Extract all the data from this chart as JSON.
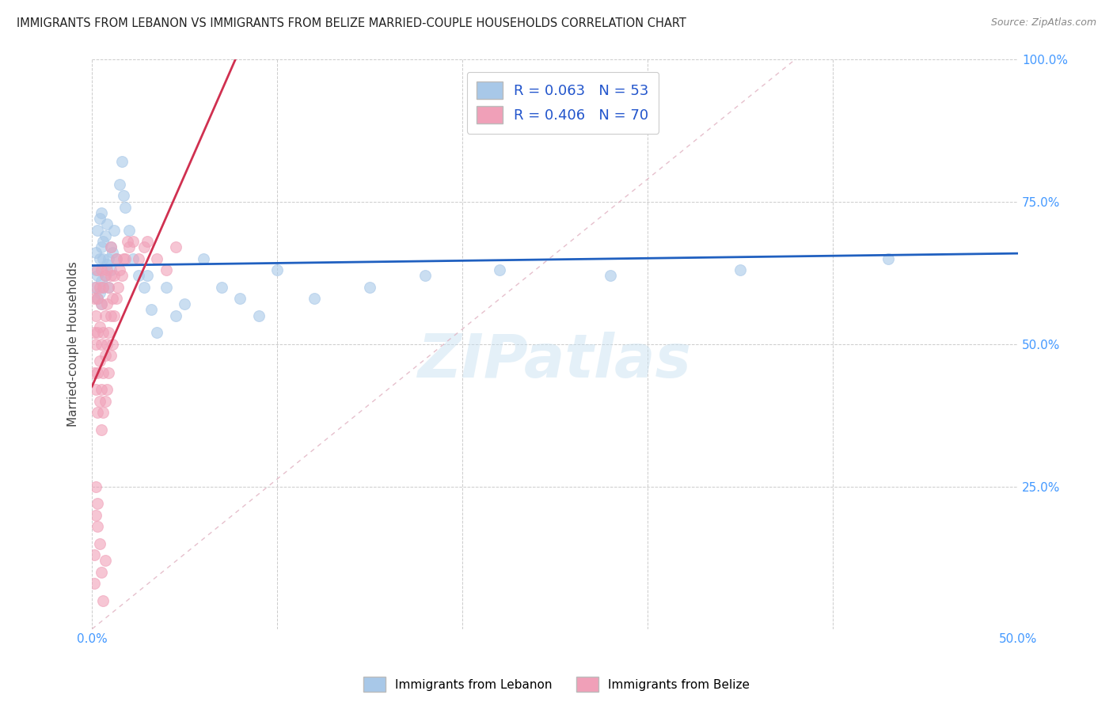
{
  "title": "IMMIGRANTS FROM LEBANON VS IMMIGRANTS FROM BELIZE MARRIED-COUPLE HOUSEHOLDS CORRELATION CHART",
  "source": "Source: ZipAtlas.com",
  "ylabel": "Married-couple Households",
  "legend_label1": "Immigrants from Lebanon",
  "legend_label2": "Immigrants from Belize",
  "r1": 0.063,
  "n1": 53,
  "r2": 0.406,
  "n2": 70,
  "color1": "#a8c8e8",
  "color2": "#f0a0b8",
  "line_color1": "#2060c0",
  "line_color2": "#d03050",
  "diag_color": "#e0b0c0",
  "xlim": [
    0.0,
    0.5
  ],
  "ylim": [
    0.0,
    1.0
  ],
  "watermark": "ZIPatlas",
  "lebanon_x": [
    0.001,
    0.002,
    0.002,
    0.003,
    0.003,
    0.003,
    0.004,
    0.004,
    0.004,
    0.005,
    0.005,
    0.005,
    0.005,
    0.006,
    0.006,
    0.006,
    0.007,
    0.007,
    0.008,
    0.008,
    0.009,
    0.009,
    0.01,
    0.01,
    0.011,
    0.012,
    0.013,
    0.015,
    0.016,
    0.017,
    0.018,
    0.02,
    0.022,
    0.025,
    0.028,
    0.03,
    0.032,
    0.035,
    0.04,
    0.045,
    0.05,
    0.06,
    0.07,
    0.08,
    0.09,
    0.1,
    0.12,
    0.15,
    0.18,
    0.22,
    0.28,
    0.35,
    0.43
  ],
  "lebanon_y": [
    0.6,
    0.63,
    0.66,
    0.58,
    0.62,
    0.7,
    0.59,
    0.65,
    0.72,
    0.57,
    0.61,
    0.67,
    0.73,
    0.6,
    0.65,
    0.68,
    0.62,
    0.69,
    0.64,
    0.71,
    0.6,
    0.65,
    0.63,
    0.67,
    0.66,
    0.7,
    0.65,
    0.78,
    0.82,
    0.76,
    0.74,
    0.7,
    0.65,
    0.62,
    0.6,
    0.62,
    0.56,
    0.52,
    0.6,
    0.55,
    0.57,
    0.65,
    0.6,
    0.58,
    0.55,
    0.63,
    0.58,
    0.6,
    0.62,
    0.63,
    0.62,
    0.63,
    0.65
  ],
  "belize_x": [
    0.001,
    0.001,
    0.001,
    0.002,
    0.002,
    0.002,
    0.002,
    0.003,
    0.003,
    0.003,
    0.003,
    0.003,
    0.004,
    0.004,
    0.004,
    0.004,
    0.005,
    0.005,
    0.005,
    0.005,
    0.005,
    0.006,
    0.006,
    0.006,
    0.006,
    0.007,
    0.007,
    0.007,
    0.007,
    0.008,
    0.008,
    0.008,
    0.008,
    0.009,
    0.009,
    0.009,
    0.01,
    0.01,
    0.01,
    0.01,
    0.011,
    0.011,
    0.012,
    0.012,
    0.013,
    0.013,
    0.014,
    0.015,
    0.016,
    0.017,
    0.018,
    0.019,
    0.02,
    0.022,
    0.025,
    0.028,
    0.03,
    0.035,
    0.04,
    0.045,
    0.001,
    0.001,
    0.002,
    0.002,
    0.003,
    0.003,
    0.004,
    0.005,
    0.006,
    0.007
  ],
  "belize_y": [
    0.45,
    0.52,
    0.58,
    0.42,
    0.5,
    0.55,
    0.6,
    0.38,
    0.45,
    0.52,
    0.58,
    0.63,
    0.4,
    0.47,
    0.53,
    0.6,
    0.35,
    0.42,
    0.5,
    0.57,
    0.63,
    0.38,
    0.45,
    0.52,
    0.6,
    0.4,
    0.48,
    0.55,
    0.62,
    0.42,
    0.5,
    0.57,
    0.63,
    0.45,
    0.52,
    0.6,
    0.48,
    0.55,
    0.62,
    0.67,
    0.5,
    0.58,
    0.55,
    0.62,
    0.58,
    0.65,
    0.6,
    0.63,
    0.62,
    0.65,
    0.65,
    0.68,
    0.67,
    0.68,
    0.65,
    0.67,
    0.68,
    0.65,
    0.63,
    0.67,
    0.08,
    0.13,
    0.2,
    0.25,
    0.18,
    0.22,
    0.15,
    0.1,
    0.05,
    0.12
  ]
}
